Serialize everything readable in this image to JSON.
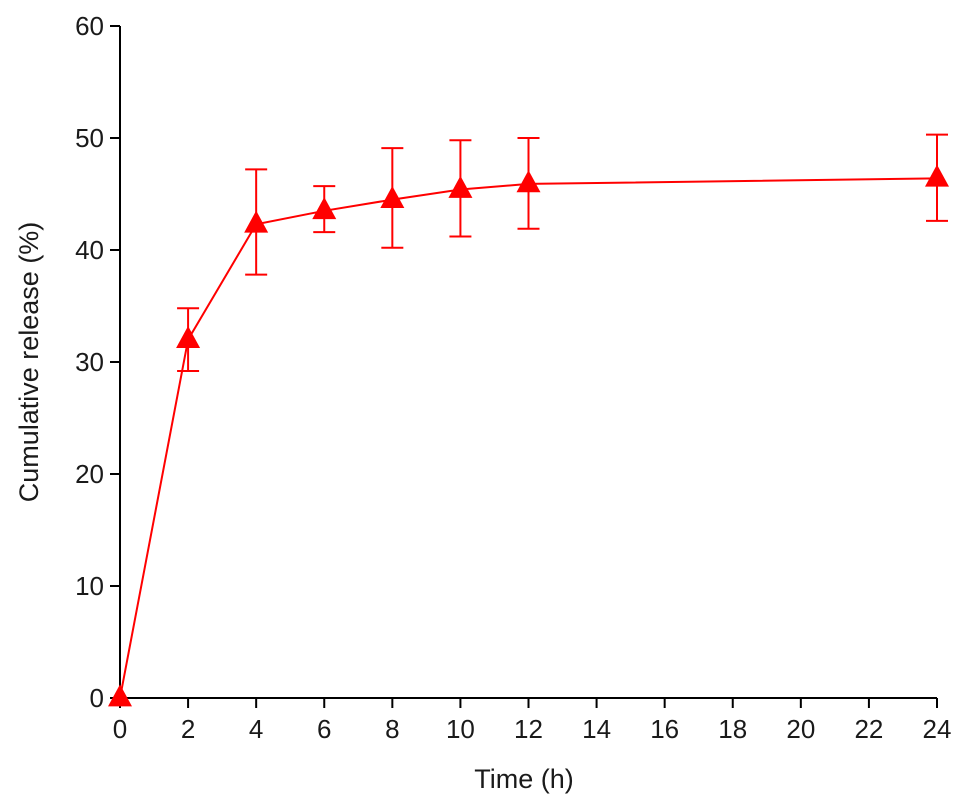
{
  "chart_data": {
    "type": "line",
    "title": "",
    "xlabel": "Time (h)",
    "ylabel": "Cumulative release (%)",
    "xlim": [
      0,
      24
    ],
    "ylim": [
      0,
      60
    ],
    "x_ticks": [
      0,
      2,
      4,
      6,
      8,
      10,
      12,
      14,
      16,
      18,
      20,
      22,
      24
    ],
    "y_ticks": [
      0,
      10,
      20,
      30,
      40,
      50,
      60
    ],
    "grid": false,
    "legend": "none",
    "series": [
      {
        "color": "#ff0000",
        "marker": "triangle",
        "x": [
          0,
          2,
          4,
          6,
          8,
          10,
          12,
          24
        ],
        "y": [
          0,
          32.0,
          42.3,
          43.5,
          44.5,
          45.4,
          45.9,
          46.4
        ],
        "error_upper": [
          0,
          34.8,
          47.2,
          45.7,
          49.1,
          49.8,
          50.0,
          50.3
        ],
        "error_lower": [
          0,
          29.2,
          37.8,
          41.6,
          40.2,
          41.2,
          41.9,
          42.6
        ]
      }
    ]
  }
}
